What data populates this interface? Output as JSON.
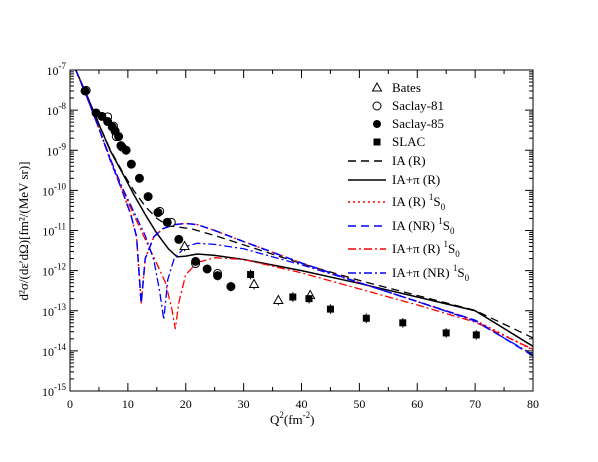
{
  "chart_data": {
    "type": "scatter",
    "xlabel_base": "Q",
    "xlabel_sup": "2",
    "xlabel_rest": "(fm",
    "xlabel_sup2": "-2",
    "xlabel_close": ")",
    "ylabel": "d²σ/(dε′dΩ)[fm²/(MeV sr)]",
    "xlim": [
      0,
      80
    ],
    "ylim_log10": [
      -15,
      -7
    ],
    "xticks": [
      0,
      10,
      20,
      30,
      40,
      50,
      60,
      70,
      80
    ],
    "yticks_exp": [
      -15,
      -14,
      -13,
      -12,
      -11,
      -10,
      -9,
      -8,
      -7
    ],
    "ytick_base": "10",
    "grid": false,
    "legend_position": "top-right",
    "legend": [
      {
        "label": "Bates",
        "marker": "triangle-open"
      },
      {
        "label": "Saclay-81",
        "marker": "circle-open"
      },
      {
        "label": "Saclay-85",
        "marker": "circle-filled"
      },
      {
        "label": "SLAC",
        "marker": "square-filled"
      },
      {
        "label": "IA (R)",
        "line": "dashed",
        "color": "#000000"
      },
      {
        "label": "IA+π (R)",
        "line": "solid",
        "color": "#000000"
      },
      {
        "label": "IA (R) ",
        "sup": "1",
        "label2": "S",
        "sub": "0",
        "line": "dotted",
        "color": "#ff0000"
      },
      {
        "label": "IA (NR) ",
        "sup": "1",
        "label2": "S",
        "sub": "0",
        "line": "dashed",
        "color": "#0000ff"
      },
      {
        "label": "IA+π (R) ",
        "sup": "1",
        "label2": "S",
        "sub": "0",
        "line": "dashdot",
        "color": "#ff0000"
      },
      {
        "label": "IA+π (NR) ",
        "sup": "1",
        "label2": "S",
        "sub": "0",
        "line": "dashdot",
        "color": "#0000ff"
      }
    ],
    "points": {
      "bates": [
        [
          19.8,
          4e-12
        ],
        [
          31.8,
          4.5e-13
        ],
        [
          36.0,
          1.8e-13
        ],
        [
          41.5,
          2.4e-13
        ]
      ],
      "saclay81": [
        [
          2.8,
          3.1e-08
        ],
        [
          6.5,
          6.8e-09
        ],
        [
          7.5,
          4e-09
        ],
        [
          8.0,
          2.2e-09
        ],
        [
          9.0,
          1.2e-09
        ],
        [
          15.5,
          3e-11
        ],
        [
          17.5,
          1.6e-11
        ],
        [
          21.7,
          1.5e-12
        ],
        [
          25.5,
          8.5e-13
        ]
      ],
      "saclay85": [
        [
          2.6,
          3e-08
        ],
        [
          4.5,
          8.5e-09
        ],
        [
          5.5,
          7e-09
        ],
        [
          6.5,
          5.2e-09
        ],
        [
          7.3,
          3.8e-09
        ],
        [
          7.8,
          3e-09
        ],
        [
          8.4,
          2.2e-09
        ],
        [
          8.8,
          1.3e-09
        ],
        [
          9.7,
          1e-09
        ],
        [
          10.6,
          4.5e-10
        ],
        [
          12.0,
          2e-10
        ],
        [
          13.5,
          7e-11
        ],
        [
          15.2,
          2.8e-11
        ],
        [
          16.8,
          1.6e-11
        ],
        [
          18.8,
          6e-12
        ],
        [
          21.7,
          1.7e-12
        ],
        [
          23.7,
          1.1e-12
        ],
        [
          25.5,
          7.5e-13
        ],
        [
          27.8,
          4e-13
        ]
      ],
      "slac": [
        [
          31.2,
          8e-13
        ],
        [
          38.5,
          2.2e-13
        ],
        [
          41.3,
          2e-13
        ],
        [
          45.0,
          1.1e-13
        ],
        [
          51.2,
          6.5e-14
        ],
        [
          57.5,
          5e-14
        ],
        [
          65.0,
          2.8e-14
        ],
        [
          70.2,
          2.5e-14
        ]
      ]
    },
    "error_bars_log10_half": 0.12,
    "curves": [
      {
        "name": "IA (R)",
        "color": "#000000",
        "dash": "8,5",
        "width": 1.3,
        "points": [
          [
            1,
            1e-07
          ],
          [
            3,
            2.2e-08
          ],
          [
            5,
            4.5e-09
          ],
          [
            7,
            1e-09
          ],
          [
            9,
            3e-10
          ],
          [
            11,
            1e-10
          ],
          [
            13,
            4e-11
          ],
          [
            15,
            2e-11
          ],
          [
            17,
            1.3e-11
          ],
          [
            19,
            1.2e-11
          ],
          [
            21,
            1.1e-11
          ],
          [
            25,
            7.5e-12
          ],
          [
            30,
            4.4e-12
          ],
          [
            40,
            1.5e-12
          ],
          [
            50,
            5.7e-13
          ],
          [
            60,
            2.4e-13
          ],
          [
            70,
            1.02e-13
          ],
          [
            80,
            2.1e-14
          ]
        ]
      },
      {
        "name": "IA+π (R)",
        "color": "#000000",
        "dash": "",
        "width": 1.5,
        "points": [
          [
            1,
            1e-07
          ],
          [
            3,
            2.2e-08
          ],
          [
            5,
            4.4e-09
          ],
          [
            7,
            9.5e-10
          ],
          [
            9,
            2.8e-10
          ],
          [
            11,
            8e-11
          ],
          [
            13,
            2.5e-11
          ],
          [
            15,
            8.5e-12
          ],
          [
            17,
            3.5e-12
          ],
          [
            18.5,
            2.2e-12
          ],
          [
            20,
            2.3e-12
          ],
          [
            22,
            2.6e-12
          ],
          [
            25,
            2.4e-12
          ],
          [
            30,
            1.9e-12
          ],
          [
            40,
            1e-12
          ],
          [
            50,
            4.8e-13
          ],
          [
            60,
            2.2e-13
          ],
          [
            70,
            1e-13
          ],
          [
            80,
            1.3e-14
          ]
        ]
      },
      {
        "name": "IA (R) 1S0",
        "color": "#ff0000",
        "dash": "2,3",
        "width": 1.5,
        "points": [
          [
            1,
            1e-07
          ],
          [
            3,
            2e-08
          ],
          [
            5,
            3.5e-09
          ],
          [
            7,
            5.5e-10
          ],
          [
            9,
            1e-10
          ],
          [
            10.5,
            2.5e-11
          ],
          [
            11.5,
            7e-12
          ],
          [
            12.3,
            1.5e-13
          ],
          [
            13,
            2e-12
          ],
          [
            14.5,
            7e-12
          ],
          [
            16,
            1.1e-11
          ],
          [
            18,
            1.4e-11
          ],
          [
            20,
            1.5e-11
          ],
          [
            22,
            1.4e-11
          ],
          [
            25,
            1e-11
          ],
          [
            30,
            5.3e-12
          ],
          [
            40,
            1.55e-12
          ],
          [
            50,
            5e-13
          ],
          [
            60,
            1.7e-13
          ],
          [
            70,
            5.8e-14
          ],
          [
            80,
            1.05e-14
          ]
        ]
      },
      {
        "name": "IA (NR) 1S0",
        "color": "#0000ff",
        "dash": "8,5",
        "width": 1.5,
        "points": [
          [
            1,
            1e-07
          ],
          [
            3,
            2e-08
          ],
          [
            5,
            3.5e-09
          ],
          [
            7,
            5.5e-10
          ],
          [
            9,
            1e-10
          ],
          [
            10.5,
            2.5e-11
          ],
          [
            11.5,
            7e-12
          ],
          [
            12.3,
            1.5e-13
          ],
          [
            13,
            2e-12
          ],
          [
            14.5,
            7e-12
          ],
          [
            16,
            1.1e-11
          ],
          [
            18,
            1.4e-11
          ],
          [
            20,
            1.5e-11
          ],
          [
            22,
            1.4e-11
          ],
          [
            25,
            1e-11
          ],
          [
            30,
            5.3e-12
          ],
          [
            40,
            1.55e-12
          ],
          [
            50,
            5e-13
          ],
          [
            60,
            1.7e-13
          ],
          [
            70,
            5.8e-14
          ],
          [
            80,
            7.5e-15
          ]
        ]
      },
      {
        "name": "IA+π (R) 1S0",
        "color": "#ff0000",
        "dash": "8,3,2,3",
        "width": 1.3,
        "points": [
          [
            1,
            1e-07
          ],
          [
            3,
            2e-08
          ],
          [
            5,
            3.5e-09
          ],
          [
            7,
            6e-10
          ],
          [
            9,
            1.1e-10
          ],
          [
            11,
            2.5e-11
          ],
          [
            13,
            6e-12
          ],
          [
            15,
            1.5e-12
          ],
          [
            16.5,
            5e-13
          ],
          [
            17.6,
            1.1e-13
          ],
          [
            18.2,
            3.5e-14
          ],
          [
            18.8,
            1.6e-13
          ],
          [
            20,
            8e-13
          ],
          [
            22,
            1.6e-12
          ],
          [
            25,
            2.1e-12
          ],
          [
            30,
            1.9e-12
          ],
          [
            40,
            8.8e-13
          ],
          [
            50,
            3.5e-13
          ],
          [
            60,
            1.4e-13
          ],
          [
            70,
            5.2e-14
          ],
          [
            80,
            1.1e-14
          ]
        ]
      },
      {
        "name": "IA+π (NR) 1S0",
        "color": "#0000ff",
        "dash": "8,3,2,3",
        "width": 1.3,
        "points": [
          [
            1,
            1e-07
          ],
          [
            3,
            2e-08
          ],
          [
            5,
            3.5e-09
          ],
          [
            7,
            6e-10
          ],
          [
            9,
            1.2e-10
          ],
          [
            11,
            3e-11
          ],
          [
            13,
            7.5e-12
          ],
          [
            14.5,
            1.8e-12
          ],
          [
            15.5,
            3e-13
          ],
          [
            16.2,
            6e-14
          ],
          [
            16.9,
            6e-13
          ],
          [
            18,
            2e-12
          ],
          [
            20,
            4e-12
          ],
          [
            22,
            4.8e-12
          ],
          [
            25,
            4.5e-12
          ],
          [
            30,
            3.5e-12
          ],
          [
            40,
            1.4e-12
          ],
          [
            50,
            5e-13
          ],
          [
            60,
            1.7e-13
          ],
          [
            70,
            5.5e-14
          ],
          [
            80,
            8e-15
          ]
        ]
      }
    ]
  }
}
